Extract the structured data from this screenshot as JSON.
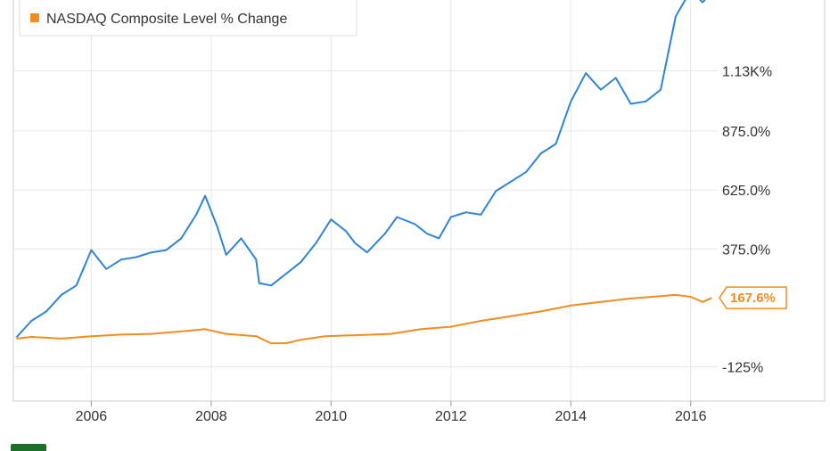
{
  "chart_data": {
    "type": "line",
    "title": "",
    "xlabel": "",
    "ylabel": "",
    "x_ticks": [
      "2006",
      "2008",
      "2010",
      "2012",
      "2014",
      "2016"
    ],
    "y_ticks": [
      "-125%",
      "375.0%",
      "625.0%",
      "875.0%",
      "1.13K%"
    ],
    "xlim": [
      2004.7,
      2016.45
    ],
    "ylim": [
      -270,
      1430
    ],
    "grid": true,
    "legend_placement": "top-left",
    "series": [
      {
        "name": "",
        "color": "#2f84d6",
        "points": [
          [
            2004.75,
            0
          ],
          [
            2005.0,
            70
          ],
          [
            2005.25,
            110
          ],
          [
            2005.5,
            180
          ],
          [
            2005.75,
            220
          ],
          [
            2006.0,
            370
          ],
          [
            2006.25,
            290
          ],
          [
            2006.5,
            330
          ],
          [
            2006.75,
            340
          ],
          [
            2007.0,
            360
          ],
          [
            2007.25,
            370
          ],
          [
            2007.5,
            420
          ],
          [
            2007.75,
            520
          ],
          [
            2007.9,
            600
          ],
          [
            2008.1,
            470
          ],
          [
            2008.25,
            350
          ],
          [
            2008.5,
            420
          ],
          [
            2008.75,
            330
          ],
          [
            2008.8,
            230
          ],
          [
            2009.0,
            220
          ],
          [
            2009.25,
            270
          ],
          [
            2009.5,
            320
          ],
          [
            2009.75,
            400
          ],
          [
            2010.0,
            500
          ],
          [
            2010.25,
            450
          ],
          [
            2010.4,
            400
          ],
          [
            2010.6,
            360
          ],
          [
            2010.9,
            440
          ],
          [
            2011.1,
            510
          ],
          [
            2011.4,
            480
          ],
          [
            2011.6,
            440
          ],
          [
            2011.8,
            420
          ],
          [
            2012.0,
            510
          ],
          [
            2012.25,
            530
          ],
          [
            2012.5,
            520
          ],
          [
            2012.75,
            620
          ],
          [
            2013.0,
            660
          ],
          [
            2013.25,
            700
          ],
          [
            2013.5,
            780
          ],
          [
            2013.75,
            820
          ],
          [
            2014.0,
            1000
          ],
          [
            2014.25,
            1120
          ],
          [
            2014.5,
            1050
          ],
          [
            2014.75,
            1100
          ],
          [
            2015.0,
            990
          ],
          [
            2015.25,
            1000
          ],
          [
            2015.5,
            1050
          ],
          [
            2015.75,
            1360
          ],
          [
            2016.0,
            1470
          ],
          [
            2016.2,
            1420
          ],
          [
            2016.4,
            1480
          ]
        ]
      },
      {
        "name": "NASDAQ Composite Level % Change",
        "color": "#f28c1e",
        "points": [
          [
            2004.75,
            -5
          ],
          [
            2005.0,
            2
          ],
          [
            2005.5,
            -5
          ],
          [
            2006.0,
            5
          ],
          [
            2006.5,
            12
          ],
          [
            2007.0,
            15
          ],
          [
            2007.5,
            25
          ],
          [
            2007.9,
            35
          ],
          [
            2008.25,
            15
          ],
          [
            2008.75,
            5
          ],
          [
            2009.0,
            -25
          ],
          [
            2009.25,
            -25
          ],
          [
            2009.5,
            -10
          ],
          [
            2009.9,
            5
          ],
          [
            2010.5,
            10
          ],
          [
            2011.0,
            15
          ],
          [
            2011.5,
            35
          ],
          [
            2012.0,
            45
          ],
          [
            2012.5,
            70
          ],
          [
            2013.0,
            90
          ],
          [
            2013.5,
            110
          ],
          [
            2014.0,
            135
          ],
          [
            2014.5,
            150
          ],
          [
            2015.0,
            165
          ],
          [
            2015.5,
            175
          ],
          [
            2015.75,
            180
          ],
          [
            2016.0,
            172
          ],
          [
            2016.2,
            150
          ],
          [
            2016.35,
            167.6
          ]
        ]
      }
    ],
    "end_label": "167.6%",
    "end_value": 167.6
  }
}
